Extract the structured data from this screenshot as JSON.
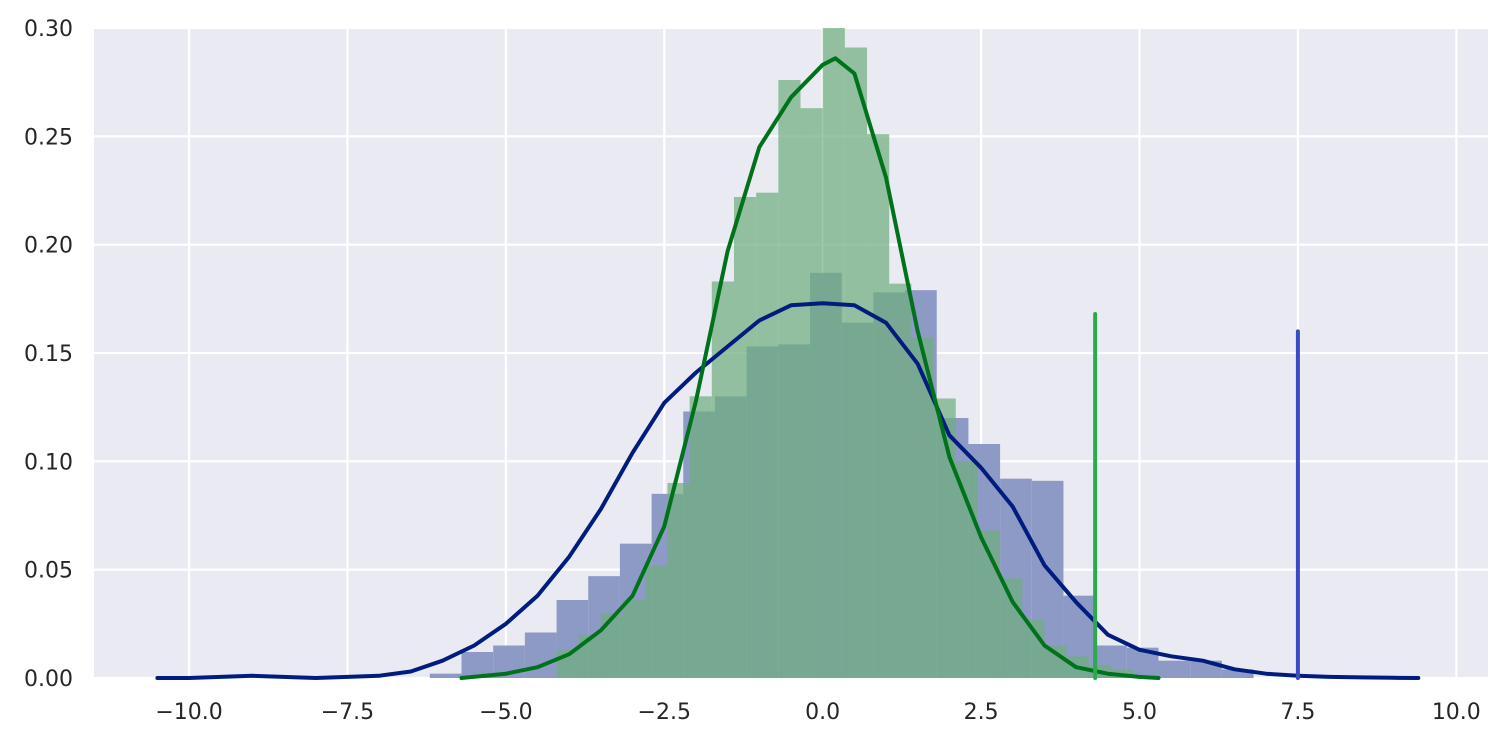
{
  "chart_data": {
    "type": "histogram-kde",
    "xlim": [
      -11.5,
      10.5
    ],
    "ylim": [
      0,
      0.3
    ],
    "xticks": [
      -10.0,
      -7.5,
      -5.0,
      -2.5,
      0.0,
      2.5,
      5.0,
      7.5,
      10.0
    ],
    "xtick_labels": [
      "−10.0",
      "−7.5",
      "−5.0",
      "−2.5",
      "0.0",
      "2.5",
      "5.0",
      "7.5",
      "10.0"
    ],
    "yticks": [
      0.0,
      0.05,
      0.1,
      0.15,
      0.2,
      0.25,
      0.3
    ],
    "ytick_labels": [
      "0.00",
      "0.05",
      "0.10",
      "0.15",
      "0.20",
      "0.25",
      "0.30"
    ],
    "grid": true,
    "background": "#eaeaf2",
    "series": [
      {
        "color": "#001c7f",
        "bar_color": "#8e9ac6",
        "hist": {
          "edges": [
            -6.2,
            -5.7,
            -5.2,
            -4.7,
            -4.2,
            -3.7,
            -3.2,
            -2.7,
            -2.2,
            -1.7,
            -1.2,
            -0.7,
            -0.2,
            0.3,
            0.8,
            1.3,
            1.8,
            2.3,
            2.8,
            3.3,
            3.8,
            4.3,
            4.8,
            5.3,
            5.8,
            6.3,
            6.8
          ],
          "density": [
            0.002,
            0.012,
            0.015,
            0.021,
            0.036,
            0.047,
            0.062,
            0.085,
            0.123,
            0.13,
            0.153,
            0.154,
            0.187,
            0.164,
            0.178,
            0.179,
            0.12,
            0.108,
            0.092,
            0.091,
            0.038,
            0.015,
            0.014,
            0.008,
            0.008,
            0.004
          ]
        },
        "kde": {
          "x": [
            -10.5,
            -10.0,
            -9.0,
            -8.0,
            -7.0,
            -6.5,
            -6.0,
            -5.5,
            -5.0,
            -4.5,
            -4.0,
            -3.5,
            -3.0,
            -2.5,
            -2.0,
            -1.5,
            -1.0,
            -0.5,
            0.0,
            0.5,
            1.0,
            1.5,
            2.0,
            2.5,
            3.0,
            3.5,
            4.0,
            4.5,
            5.0,
            5.5,
            6.0,
            6.5,
            7.0,
            7.5,
            8.0,
            8.5,
            9.0,
            9.4
          ],
          "y": [
            0.0,
            0.0,
            0.001,
            0.0,
            0.001,
            0.003,
            0.008,
            0.015,
            0.025,
            0.038,
            0.056,
            0.078,
            0.104,
            0.127,
            0.141,
            0.153,
            0.165,
            0.172,
            0.173,
            0.172,
            0.164,
            0.145,
            0.112,
            0.097,
            0.079,
            0.052,
            0.035,
            0.02,
            0.013,
            0.01,
            0.008,
            0.004,
            0.002,
            0.001,
            0.0005,
            0.0003,
            0.0001,
            0.0
          ]
        },
        "marker_line": {
          "x": 7.5,
          "y_top": 0.16,
          "color": "#3b4cc0"
        }
      },
      {
        "color": "#00721c",
        "bar_color": "#6fae7e",
        "hist": {
          "edges": [
            -4.2,
            -3.85,
            -3.5,
            -3.15,
            -2.8,
            -2.45,
            -2.1,
            -1.75,
            -1.4,
            -1.05,
            -0.7,
            -0.35,
            0.0,
            0.35,
            0.7,
            1.05,
            1.4,
            1.75,
            2.1,
            2.45,
            2.8,
            3.15,
            3.5,
            3.85,
            4.2,
            4.55,
            4.9,
            5.25
          ],
          "density": [
            0.013,
            0.02,
            0.03,
            0.036,
            0.052,
            0.09,
            0.13,
            0.183,
            0.222,
            0.224,
            0.276,
            0.263,
            0.3,
            0.291,
            0.251,
            0.182,
            0.157,
            0.129,
            0.1,
            0.068,
            0.046,
            0.027,
            0.015,
            0.01,
            0.006,
            0.004,
            0.001
          ]
        },
        "kde": {
          "x": [
            -5.7,
            -5.0,
            -4.5,
            -4.0,
            -3.5,
            -3.0,
            -2.5,
            -2.0,
            -1.5,
            -1.0,
            -0.5,
            0.0,
            0.2,
            0.5,
            1.0,
            1.5,
            2.0,
            2.5,
            3.0,
            3.5,
            4.0,
            4.5,
            5.0,
            5.3
          ],
          "y": [
            0.0,
            0.002,
            0.005,
            0.011,
            0.022,
            0.038,
            0.07,
            0.128,
            0.197,
            0.245,
            0.268,
            0.283,
            0.286,
            0.279,
            0.231,
            0.16,
            0.102,
            0.065,
            0.035,
            0.015,
            0.005,
            0.002,
            0.0005,
            0.0
          ]
        },
        "marker_line": {
          "x": 4.3,
          "y_top": 0.168,
          "color": "#2ca94f"
        }
      }
    ]
  }
}
